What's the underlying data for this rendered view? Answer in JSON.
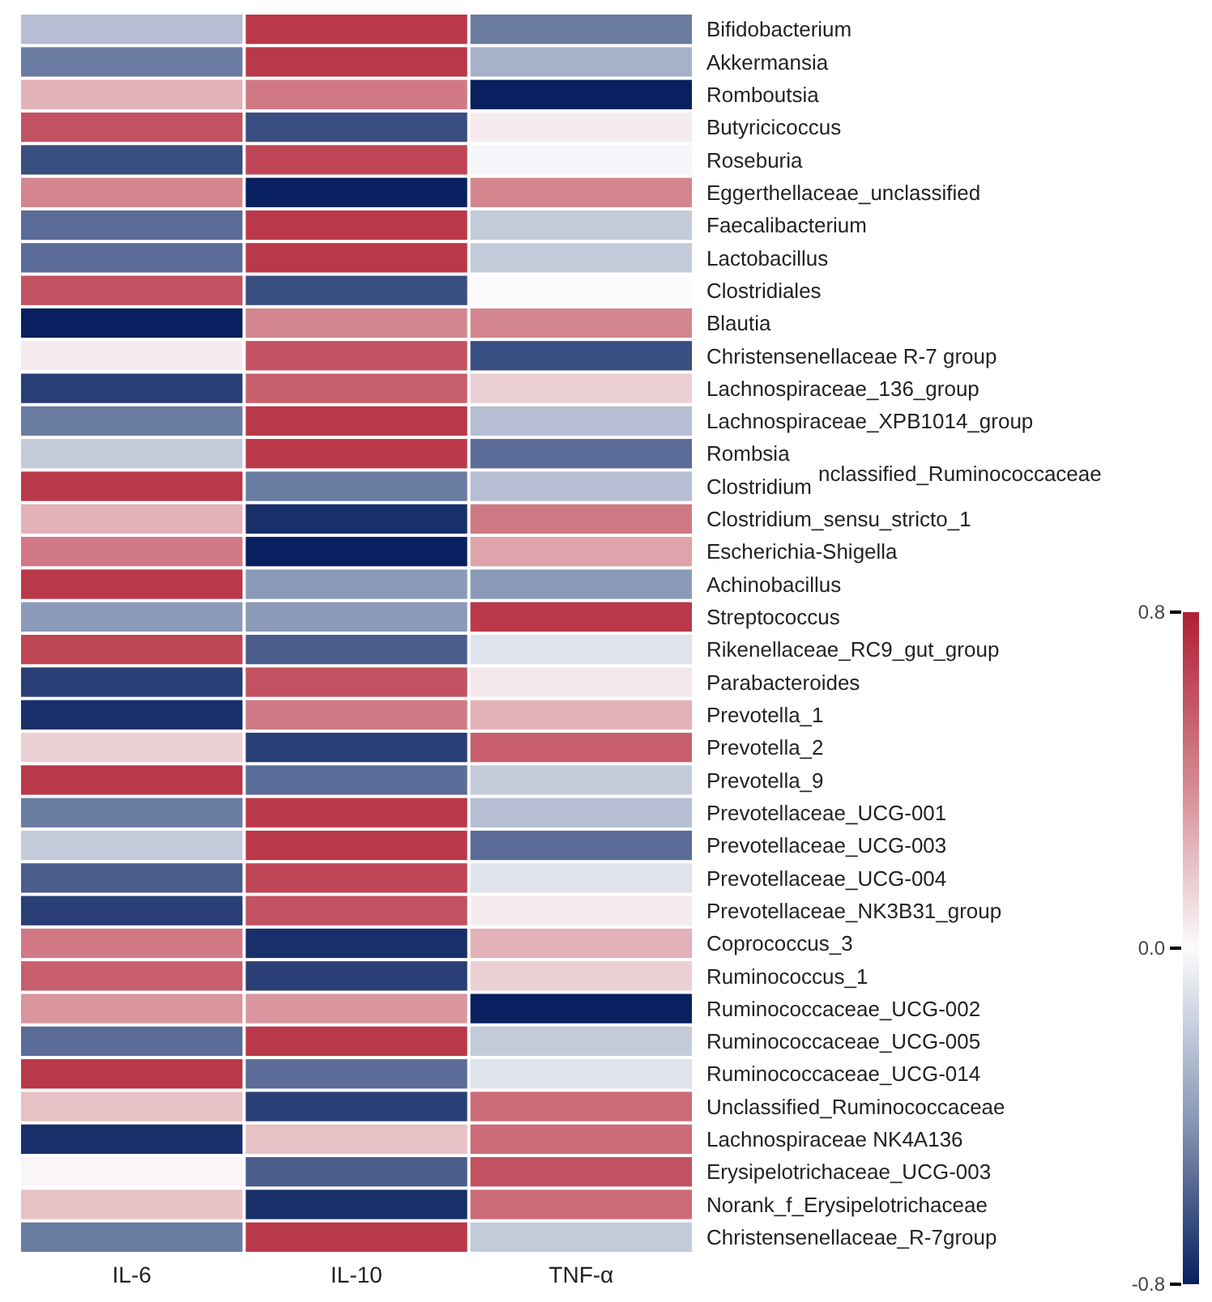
{
  "chart_data": {
    "type": "heatmap",
    "categories": [
      "IL-6",
      "IL-10",
      "TNF-α"
    ],
    "y_categories": [
      "Bifidobacterium",
      "Akkermansia",
      "Romboutsia",
      "Butyricicoccus",
      "Roseburia",
      "Eggerthellaceae_unclassified",
      "Faecalibacterium",
      "Lactobacillus",
      "Clostridiales",
      "Blautia",
      "Christensenellaceae R-7 group",
      "Lachnospiraceae_136_group",
      "Lachnospiraceae_XPB1014_group",
      "Rombsia",
      "Clostridium",
      "Clostridium_sensu_stricto_1",
      "Escherichia-Shigella",
      "Achinobacillus",
      "Streptococcus",
      "Rikenellaceae_RC9_gut_group",
      "Parabacteroides",
      "Prevotella_1",
      "Prevotella_2",
      "Prevotella_9",
      "Prevotellaceae_UCG-001",
      "Prevotellaceae_UCG-003",
      "Prevotellaceae_UCG-004",
      "Prevotellaceae_NK3B31_group",
      "Coprococcus_3",
      "Ruminococcus_1",
      "Ruminococcaceae_UCG-002",
      "Ruminococcaceae_UCG-005",
      "Ruminococcaceae_UCG-014",
      "Unclassified_Ruminococcaceae",
      "Lachnospiraceae NK4A136",
      "Erysipelotrichaceae_UCG-003",
      "Norank_f_Erysipelotrichaceae",
      "Christensenellaceae_R-7group"
    ],
    "cells": [
      [
        -0.25,
        0.7,
        -0.5
      ],
      [
        -0.5,
        0.7,
        -0.3
      ],
      [
        0.25,
        0.45,
        -0.8
      ],
      [
        0.6,
        -0.65,
        0.05
      ],
      [
        -0.65,
        0.65,
        -0.02
      ],
      [
        0.4,
        -0.8,
        0.4
      ],
      [
        -0.55,
        0.7,
        -0.2
      ],
      [
        -0.55,
        0.7,
        -0.2
      ],
      [
        0.6,
        -0.65,
        0.0
      ],
      [
        -0.8,
        0.4,
        0.4
      ],
      [
        0.05,
        0.6,
        -0.65
      ],
      [
        -0.7,
        0.55,
        0.15
      ],
      [
        -0.5,
        0.7,
        -0.25
      ],
      [
        -0.2,
        0.7,
        -0.55
      ],
      [
        0.7,
        -0.5,
        -0.25
      ],
      [
        0.25,
        -0.75,
        0.45
      ],
      [
        0.45,
        -0.8,
        0.3
      ],
      [
        0.7,
        -0.4,
        -0.4
      ],
      [
        -0.4,
        -0.4,
        0.7
      ],
      [
        0.65,
        -0.6,
        -0.1
      ],
      [
        -0.7,
        0.6,
        0.07
      ],
      [
        -0.75,
        0.45,
        0.25
      ],
      [
        0.15,
        -0.7,
        0.55
      ],
      [
        0.7,
        -0.55,
        -0.2
      ],
      [
        -0.5,
        0.7,
        -0.25
      ],
      [
        -0.2,
        0.7,
        -0.55
      ],
      [
        -0.6,
        0.65,
        -0.1
      ],
      [
        -0.7,
        0.6,
        0.05
      ],
      [
        0.45,
        -0.75,
        0.25
      ],
      [
        0.55,
        -0.7,
        0.15
      ],
      [
        0.35,
        0.35,
        -0.8
      ],
      [
        -0.55,
        0.7,
        -0.2
      ],
      [
        0.7,
        -0.55,
        -0.1
      ],
      [
        0.2,
        -0.7,
        0.5
      ],
      [
        -0.75,
        0.2,
        0.5
      ],
      [
        0.02,
        -0.6,
        0.6
      ],
      [
        0.2,
        -0.75,
        0.5
      ],
      [
        -0.5,
        0.7,
        -0.2
      ]
    ],
    "clim": [
      -0.8,
      0.8
    ],
    "cticks": [
      {
        "value": 0.8,
        "label": "0.8"
      },
      {
        "value": 0,
        "label": "0.0"
      },
      {
        "value": -0.8,
        "label": "-0.8"
      }
    ],
    "annotations": [
      "nclassified_Ruminococcaceae"
    ]
  }
}
